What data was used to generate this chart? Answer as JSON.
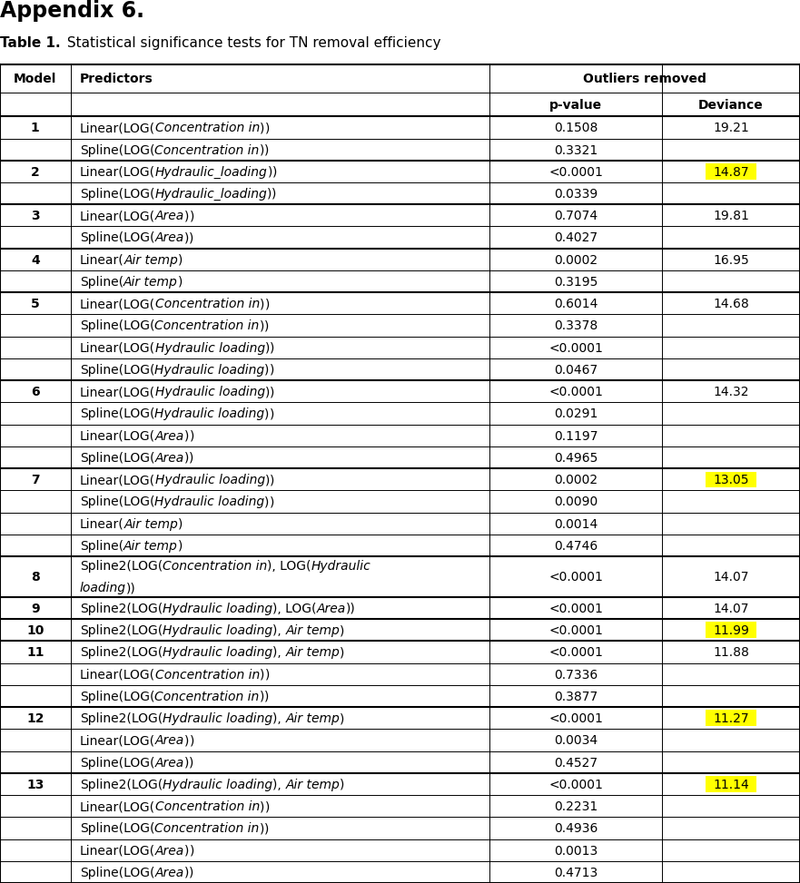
{
  "title_appendix": "Appendix 6.",
  "title_table_bold": "Table 1.",
  "title_table_normal": " Statistical significance tests for TN removal efficiency",
  "rows": [
    {
      "model": "1",
      "predictor": [
        [
          "Linear(LOG(",
          false
        ],
        [
          "Concentration in",
          true
        ],
        [
          ")",
          false
        ],
        [
          ")",
          false
        ]
      ],
      "pvalue": "0.1508",
      "deviance": "19.21",
      "deviance_highlight": false,
      "group_start": true,
      "tall": false
    },
    {
      "model": "",
      "predictor": [
        [
          "Spline(LOG(",
          false
        ],
        [
          "Concentration in",
          true
        ],
        [
          ")",
          false
        ],
        [
          ")",
          false
        ]
      ],
      "pvalue": "0.3321",
      "deviance": "",
      "deviance_highlight": false,
      "group_start": false,
      "tall": false
    },
    {
      "model": "2",
      "predictor": [
        [
          "Linear(LOG(",
          false
        ],
        [
          "Hydraulic_loading",
          true
        ],
        [
          ")",
          false
        ],
        [
          ")",
          false
        ]
      ],
      "pvalue": "<0.0001",
      "deviance": "14.87",
      "deviance_highlight": true,
      "group_start": true,
      "tall": false
    },
    {
      "model": "",
      "predictor": [
        [
          "Spline(LOG(",
          false
        ],
        [
          "Hydraulic_loading",
          true
        ],
        [
          ")",
          false
        ],
        [
          ")",
          false
        ]
      ],
      "pvalue": "0.0339",
      "deviance": "",
      "deviance_highlight": false,
      "group_start": false,
      "tall": false
    },
    {
      "model": "3",
      "predictor": [
        [
          "Linear(LOG(",
          false
        ],
        [
          "Area",
          true
        ],
        [
          ")",
          false
        ],
        [
          ")",
          false
        ]
      ],
      "pvalue": "0.7074",
      "deviance": "19.81",
      "deviance_highlight": false,
      "group_start": true,
      "tall": false
    },
    {
      "model": "",
      "predictor": [
        [
          "Spline(LOG(",
          false
        ],
        [
          "Area",
          true
        ],
        [
          ")",
          false
        ],
        [
          ")",
          false
        ]
      ],
      "pvalue": "0.4027",
      "deviance": "",
      "deviance_highlight": false,
      "group_start": false,
      "tall": false
    },
    {
      "model": "4",
      "predictor": [
        [
          "Linear(",
          false
        ],
        [
          "Air temp",
          true
        ],
        [
          ")",
          false
        ]
      ],
      "pvalue": "0.0002",
      "deviance": "16.95",
      "deviance_highlight": false,
      "group_start": true,
      "tall": false
    },
    {
      "model": "",
      "predictor": [
        [
          "Spline(",
          false
        ],
        [
          "Air temp",
          true
        ],
        [
          ")",
          false
        ]
      ],
      "pvalue": "0.3195",
      "deviance": "",
      "deviance_highlight": false,
      "group_start": false,
      "tall": false
    },
    {
      "model": "5",
      "predictor": [
        [
          "Linear(LOG(",
          false
        ],
        [
          "Concentration in",
          true
        ],
        [
          ")",
          false
        ],
        [
          ")",
          false
        ]
      ],
      "pvalue": "0.6014",
      "deviance": "14.68",
      "deviance_highlight": false,
      "group_start": true,
      "tall": false
    },
    {
      "model": "",
      "predictor": [
        [
          "Spline(LOG(",
          false
        ],
        [
          "Concentration in",
          true
        ],
        [
          ")",
          false
        ],
        [
          ")",
          false
        ]
      ],
      "pvalue": "0.3378",
      "deviance": "",
      "deviance_highlight": false,
      "group_start": false,
      "tall": false
    },
    {
      "model": "",
      "predictor": [
        [
          "Linear(LOG(",
          false
        ],
        [
          "Hydraulic loading",
          true
        ],
        [
          ")",
          false
        ],
        [
          ")",
          false
        ]
      ],
      "pvalue": "<0.0001",
      "deviance": "",
      "deviance_highlight": false,
      "group_start": false,
      "tall": false
    },
    {
      "model": "",
      "predictor": [
        [
          "Spline(LOG(",
          false
        ],
        [
          "Hydraulic loading",
          true
        ],
        [
          ")",
          false
        ],
        [
          ")",
          false
        ]
      ],
      "pvalue": "0.0467",
      "deviance": "",
      "deviance_highlight": false,
      "group_start": false,
      "tall": false
    },
    {
      "model": "6",
      "predictor": [
        [
          "Linear(LOG(",
          false
        ],
        [
          "Hydraulic loading",
          true
        ],
        [
          ")",
          false
        ],
        [
          ")",
          false
        ]
      ],
      "pvalue": "<0.0001",
      "deviance": "14.32",
      "deviance_highlight": false,
      "group_start": true,
      "tall": false
    },
    {
      "model": "",
      "predictor": [
        [
          "Spline(LOG(",
          false
        ],
        [
          "Hydraulic loading",
          true
        ],
        [
          ")",
          false
        ],
        [
          ")",
          false
        ]
      ],
      "pvalue": "0.0291",
      "deviance": "",
      "deviance_highlight": false,
      "group_start": false,
      "tall": false
    },
    {
      "model": "",
      "predictor": [
        [
          "Linear(LOG(",
          false
        ],
        [
          "Area",
          true
        ],
        [
          ")",
          false
        ],
        [
          ")",
          false
        ]
      ],
      "pvalue": "0.1197",
      "deviance": "",
      "deviance_highlight": false,
      "group_start": false,
      "tall": false
    },
    {
      "model": "",
      "predictor": [
        [
          "Spline(LOG(",
          false
        ],
        [
          "Area",
          true
        ],
        [
          ")",
          false
        ],
        [
          ")",
          false
        ]
      ],
      "pvalue": "0.4965",
      "deviance": "",
      "deviance_highlight": false,
      "group_start": false,
      "tall": false
    },
    {
      "model": "7",
      "predictor": [
        [
          "Linear(LOG(",
          false
        ],
        [
          "Hydraulic loading",
          true
        ],
        [
          ")",
          false
        ],
        [
          ")",
          false
        ]
      ],
      "pvalue": "0.0002",
      "deviance": "13.05",
      "deviance_highlight": true,
      "group_start": true,
      "tall": false
    },
    {
      "model": "",
      "predictor": [
        [
          "Spline(LOG(",
          false
        ],
        [
          "Hydraulic loading",
          true
        ],
        [
          ")",
          false
        ],
        [
          ")",
          false
        ]
      ],
      "pvalue": "0.0090",
      "deviance": "",
      "deviance_highlight": false,
      "group_start": false,
      "tall": false
    },
    {
      "model": "",
      "predictor": [
        [
          "Linear(",
          false
        ],
        [
          "Air temp",
          true
        ],
        [
          ")",
          false
        ]
      ],
      "pvalue": "0.0014",
      "deviance": "",
      "deviance_highlight": false,
      "group_start": false,
      "tall": false
    },
    {
      "model": "",
      "predictor": [
        [
          "Spline(",
          false
        ],
        [
          "Air temp",
          true
        ],
        [
          ")",
          false
        ]
      ],
      "pvalue": "0.4746",
      "deviance": "",
      "deviance_highlight": false,
      "group_start": false,
      "tall": false
    },
    {
      "model": "8",
      "predictor": [
        [
          "Spline2(LOG(",
          false
        ],
        [
          "Concentration in",
          true
        ],
        [
          "), LOG(",
          false
        ],
        [
          "Hydraulic\nloading",
          true
        ],
        [
          "))",
          false
        ]
      ],
      "pvalue": "<0.0001",
      "deviance": "14.07",
      "deviance_highlight": false,
      "group_start": true,
      "tall": true
    },
    {
      "model": "9",
      "predictor": [
        [
          "Spline2(LOG(",
          false
        ],
        [
          "Hydraulic loading",
          true
        ],
        [
          "), LOG(",
          false
        ],
        [
          "Area",
          true
        ],
        [
          "))",
          false
        ]
      ],
      "pvalue": "<0.0001",
      "deviance": "14.07",
      "deviance_highlight": false,
      "group_start": true,
      "tall": false
    },
    {
      "model": "10",
      "predictor": [
        [
          "Spline2(LOG(",
          false
        ],
        [
          "Hydraulic loading",
          true
        ],
        [
          "), ",
          false
        ],
        [
          "Air temp",
          true
        ],
        [
          ")",
          false
        ]
      ],
      "pvalue": "<0.0001",
      "deviance": "11.99",
      "deviance_highlight": true,
      "group_start": true,
      "tall": false
    },
    {
      "model": "11",
      "predictor": [
        [
          "Spline2(LOG(",
          false
        ],
        [
          "Hydraulic loading",
          true
        ],
        [
          "), ",
          false
        ],
        [
          "Air temp",
          true
        ],
        [
          ")",
          false
        ]
      ],
      "pvalue": "<0.0001",
      "deviance": "11.88",
      "deviance_highlight": false,
      "group_start": true,
      "tall": false
    },
    {
      "model": "",
      "predictor": [
        [
          "Linear(LOG(",
          false
        ],
        [
          "Concentration in",
          true
        ],
        [
          ")",
          false
        ],
        [
          ")",
          false
        ]
      ],
      "pvalue": "0.7336",
      "deviance": "",
      "deviance_highlight": false,
      "group_start": false,
      "tall": false
    },
    {
      "model": "",
      "predictor": [
        [
          "Spline(LOG(",
          false
        ],
        [
          "Concentration in",
          true
        ],
        [
          ")",
          false
        ],
        [
          ")",
          false
        ]
      ],
      "pvalue": "0.3877",
      "deviance": "",
      "deviance_highlight": false,
      "group_start": false,
      "tall": false
    },
    {
      "model": "12",
      "predictor": [
        [
          "Spline2(LOG(",
          false
        ],
        [
          "Hydraulic loading",
          true
        ],
        [
          "), ",
          false
        ],
        [
          "Air temp",
          true
        ],
        [
          ")",
          false
        ]
      ],
      "pvalue": "<0.0001",
      "deviance": "11.27",
      "deviance_highlight": true,
      "group_start": true,
      "tall": false
    },
    {
      "model": "",
      "predictor": [
        [
          "Linear(LOG(",
          false
        ],
        [
          "Area",
          true
        ],
        [
          ")",
          false
        ],
        [
          ")",
          false
        ]
      ],
      "pvalue": "0.0034",
      "deviance": "",
      "deviance_highlight": false,
      "group_start": false,
      "tall": false
    },
    {
      "model": "",
      "predictor": [
        [
          "Spline(LOG(",
          false
        ],
        [
          "Area",
          true
        ],
        [
          ")",
          false
        ],
        [
          ")",
          false
        ]
      ],
      "pvalue": "0.4527",
      "deviance": "",
      "deviance_highlight": false,
      "group_start": false,
      "tall": false
    },
    {
      "model": "13",
      "predictor": [
        [
          "Spline2(LOG(",
          false
        ],
        [
          "Hydraulic loading",
          true
        ],
        [
          "), ",
          false
        ],
        [
          "Air temp",
          true
        ],
        [
          ")",
          false
        ]
      ],
      "pvalue": "<0.0001",
      "deviance": "11.14",
      "deviance_highlight": true,
      "group_start": true,
      "tall": false
    },
    {
      "model": "",
      "predictor": [
        [
          "Linear(LOG(",
          false
        ],
        [
          "Concentration in",
          true
        ],
        [
          ")",
          false
        ],
        [
          ")",
          false
        ]
      ],
      "pvalue": "0.2231",
      "deviance": "",
      "deviance_highlight": false,
      "group_start": false,
      "tall": false
    },
    {
      "model": "",
      "predictor": [
        [
          "Spline(LOG(",
          false
        ],
        [
          "Concentration in",
          true
        ],
        [
          ")",
          false
        ],
        [
          ")",
          false
        ]
      ],
      "pvalue": "0.4936",
      "deviance": "",
      "deviance_highlight": false,
      "group_start": false,
      "tall": false
    },
    {
      "model": "",
      "predictor": [
        [
          "Linear(LOG(",
          false
        ],
        [
          "Area",
          true
        ],
        [
          ")",
          false
        ],
        [
          ")",
          false
        ]
      ],
      "pvalue": "0.0013",
      "deviance": "",
      "deviance_highlight": false,
      "group_start": false,
      "tall": false
    },
    {
      "model": "",
      "predictor": [
        [
          "Spline(LOG(",
          false
        ],
        [
          "Area",
          true
        ],
        [
          ")",
          false
        ],
        [
          ")",
          false
        ]
      ],
      "pvalue": "0.4713",
      "deviance": "",
      "deviance_highlight": false,
      "group_start": false,
      "tall": false
    }
  ],
  "highlight_color": "#FFFF00",
  "font_size": 10,
  "header_font_size": 10
}
